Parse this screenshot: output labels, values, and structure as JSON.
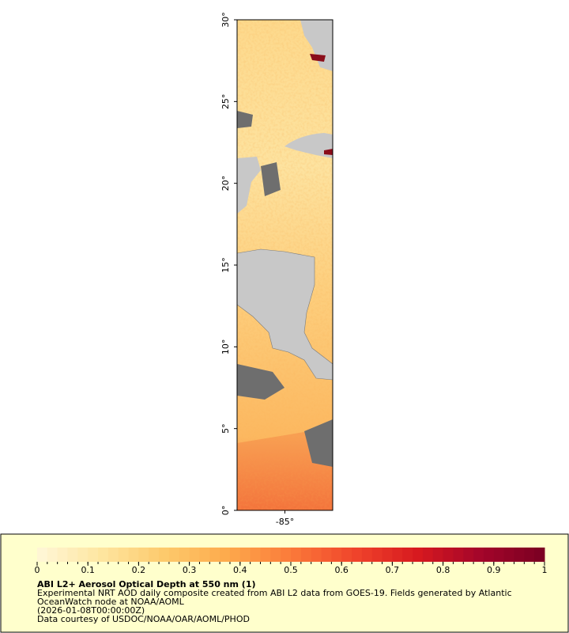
{
  "map": {
    "latlim": [
      0,
      30
    ],
    "lonlim": [
      -87.9,
      -82.1
    ],
    "lat_ticks": [
      {
        "value": 0,
        "label": "0°"
      },
      {
        "value": 5,
        "label": "5°"
      },
      {
        "value": 10,
        "label": "10°"
      },
      {
        "value": 15,
        "label": "15°"
      },
      {
        "value": 20,
        "label": "20°"
      },
      {
        "value": 25,
        "label": "25°"
      },
      {
        "value": 30,
        "label": "30°"
      }
    ],
    "lon_ticks": [
      {
        "value": -85,
        "label": "-85°"
      }
    ]
  },
  "legend": {
    "title": "ABI L2+ Aerosol Optical Depth at 550 nm (1)",
    "lines": [
      "Experimental NRT AOD daily composite created from ABI L2 data from GOES-19. Fields generated by Atlantic",
      "OceanWatch node at NOAA/AOML",
      "(2026-01-08T00:00:00Z)",
      "Data courtesy of USDOC/NOAA/OAR/AOML/PHOD"
    ]
  },
  "colorbar": {
    "lim": [
      0,
      1
    ],
    "ticks": [
      0,
      0.1,
      0.2,
      0.3,
      0.4,
      0.5,
      0.6,
      0.7,
      0.8,
      0.9,
      1
    ],
    "colors": [
      "#fff7d8",
      "#fee6a0",
      "#fdca6c",
      "#fdaa4c",
      "#fb7a3a",
      "#f0452b",
      "#d7191f",
      "#a3052a",
      "#7a0022"
    ]
  }
}
